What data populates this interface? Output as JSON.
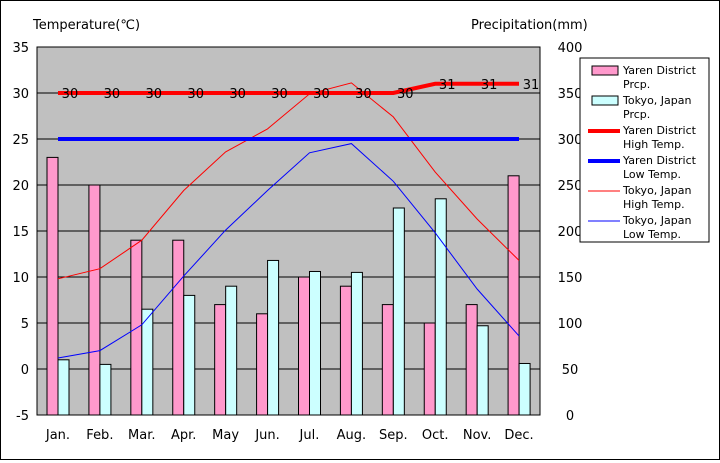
{
  "chart_data": {
    "type": "bar+line",
    "left_axis_title": "Temperature(℃)",
    "right_axis_title": "Precipitation(mm)",
    "categories": [
      "Jan.",
      "Feb.",
      "Mar.",
      "Apr.",
      "May",
      "Jun.",
      "Jul.",
      "Aug.",
      "Sep.",
      "Oct.",
      "Nov.",
      "Dec."
    ],
    "left_axis": {
      "min": -5,
      "max": 35,
      "step": 5,
      "ticks": [
        "-5",
        "0",
        "5",
        "10",
        "15",
        "20",
        "25",
        "30",
        "35"
      ]
    },
    "right_axis": {
      "min": 0,
      "max": 400,
      "step": 50,
      "ticks": [
        "0",
        "50",
        "100",
        "150",
        "200",
        "250",
        "300",
        "350",
        "400"
      ]
    },
    "grid": "horizontal",
    "legend_position": "right",
    "bar_series": [
      {
        "name": "Yaren District Prcp.",
        "color": "#ff99cc",
        "values": [
          280,
          250,
          190,
          190,
          120,
          110,
          150,
          140,
          120,
          100,
          120,
          260
        ]
      },
      {
        "name": "Tokyo, Japan Prcp.",
        "color": "#ccffff",
        "values": [
          60,
          55,
          115,
          130,
          140,
          168,
          156,
          155,
          225,
          235,
          97,
          56
        ]
      }
    ],
    "line_series": [
      {
        "name": "Yaren District High Temp.",
        "color": "#ff0000",
        "width": "thick",
        "values": [
          30,
          30,
          30,
          30,
          30,
          30,
          30,
          30,
          30,
          31,
          31,
          31
        ],
        "labels": [
          "30",
          "30",
          "30",
          "30",
          "30",
          "30",
          "30",
          "30",
          "30",
          "31",
          "31",
          "31"
        ]
      },
      {
        "name": "Yaren District Low Temp.",
        "color": "#0000ff",
        "width": "thick",
        "values": [
          25,
          25,
          25,
          25,
          25,
          25,
          25,
          25,
          25,
          25,
          25,
          25
        ]
      },
      {
        "name": "Tokyo, Japan High Temp.",
        "color": "#ff0000",
        "width": "thin",
        "values": [
          9.8,
          10.9,
          14,
          19.4,
          23.6,
          26.1,
          29.9,
          31.1,
          27.4,
          21.4,
          16.3,
          11.8
        ]
      },
      {
        "name": "Tokyo, Japan Low Temp.",
        "color": "#0000ff",
        "width": "thin",
        "values": [
          1.2,
          2,
          4.8,
          10.1,
          15.1,
          19.4,
          23.5,
          24.5,
          20.4,
          14.8,
          8.7,
          3.6
        ]
      }
    ],
    "legend": [
      {
        "kind": "bar",
        "line1": "Yaren District",
        "line2": "Prcp.",
        "color": "#ff99cc"
      },
      {
        "kind": "bar",
        "line1": "Tokyo, Japan",
        "line2": "Prcp.",
        "color": "#ccffff"
      },
      {
        "kind": "line-thick",
        "line1": "Yaren District",
        "line2": "High Temp.",
        "color": "#ff0000"
      },
      {
        "kind": "line-thick",
        "line1": "Yaren District",
        "line2": "Low Temp.",
        "color": "#0000ff"
      },
      {
        "kind": "line-thin",
        "line1": "Tokyo, Japan",
        "line2": "High Temp.",
        "color": "#ff0000"
      },
      {
        "kind": "line-thin",
        "line1": "Tokyo, Japan",
        "line2": "Low Temp.",
        "color": "#0000ff"
      }
    ],
    "plot_background": "#c0c0c0"
  }
}
